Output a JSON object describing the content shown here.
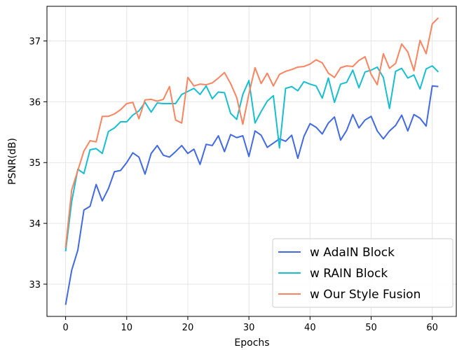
{
  "chart_data": {
    "type": "line",
    "xlabel": "Epochs",
    "ylabel": "PSNR(dB)",
    "xlim": [
      -3.05,
      64.05
    ],
    "ylim": [
      32.47,
      37.57
    ],
    "xticks": [
      "0",
      "10",
      "20",
      "30",
      "40",
      "50",
      "60"
    ],
    "yticks": [
      "33",
      "34",
      "35",
      "36",
      "37"
    ],
    "grid": true,
    "legend_position": "lower-right",
    "x": [
      0,
      1,
      2,
      3,
      4,
      5,
      6,
      7,
      8,
      9,
      10,
      11,
      12,
      13,
      14,
      15,
      16,
      17,
      18,
      19,
      20,
      21,
      22,
      23,
      24,
      25,
      26,
      27,
      28,
      29,
      30,
      31,
      32,
      33,
      34,
      35,
      36,
      37,
      38,
      39,
      40,
      41,
      42,
      43,
      44,
      45,
      46,
      47,
      48,
      49,
      50,
      51,
      52,
      53,
      54,
      55,
      56,
      57,
      58,
      59,
      60,
      61
    ],
    "series": [
      {
        "name": "w AdaIN Block",
        "color": "#4169e1",
        "values": [
          32.66,
          33.23,
          33.56,
          34.22,
          34.28,
          34.64,
          34.37,
          34.57,
          34.85,
          34.87,
          35.0,
          35.16,
          35.09,
          34.81,
          35.15,
          35.28,
          35.12,
          35.09,
          35.18,
          35.28,
          35.15,
          35.22,
          34.97,
          35.3,
          35.28,
          35.44,
          35.18,
          35.46,
          35.41,
          35.44,
          35.1,
          35.52,
          35.45,
          35.25,
          35.32,
          35.39,
          35.35,
          35.45,
          35.07,
          35.43,
          35.64,
          35.58,
          35.47,
          35.65,
          35.75,
          35.37,
          35.53,
          35.79,
          35.57,
          35.7,
          35.76,
          35.52,
          35.39,
          35.52,
          35.61,
          35.78,
          35.52,
          35.79,
          35.73,
          35.6,
          36.26,
          36.25
        ]
      },
      {
        "name": "w RAIN Block",
        "color": "#17becf",
        "values": [
          33.54,
          34.36,
          34.89,
          34.82,
          35.21,
          35.23,
          35.15,
          35.51,
          35.57,
          35.67,
          35.67,
          35.78,
          35.85,
          35.99,
          35.83,
          35.98,
          35.97,
          35.97,
          35.97,
          36.12,
          36.17,
          36.22,
          36.12,
          36.26,
          36.05,
          36.16,
          36.15,
          35.81,
          35.71,
          36.12,
          36.35,
          35.65,
          35.84,
          36.01,
          36.1,
          35.24,
          36.22,
          36.25,
          36.18,
          36.33,
          36.29,
          36.26,
          36.06,
          36.39,
          35.99,
          36.29,
          36.32,
          36.52,
          36.23,
          36.49,
          36.52,
          36.57,
          36.4,
          35.89,
          36.5,
          36.55,
          36.39,
          36.44,
          36.21,
          36.54,
          36.59,
          36.49
        ]
      },
      {
        "name": "w Our Style Fusion",
        "color": "#fa8460",
        "values": [
          33.6,
          34.55,
          34.87,
          35.19,
          35.36,
          35.34,
          35.76,
          35.76,
          35.8,
          35.87,
          35.97,
          35.99,
          35.72,
          36.03,
          36.04,
          36.01,
          36.04,
          36.25,
          35.7,
          35.65,
          36.4,
          36.26,
          36.29,
          36.28,
          36.31,
          36.39,
          36.48,
          36.3,
          36.07,
          35.63,
          36.13,
          36.56,
          36.3,
          36.47,
          36.26,
          36.45,
          36.5,
          36.53,
          36.57,
          36.58,
          36.62,
          36.69,
          36.64,
          36.47,
          36.4,
          36.56,
          36.59,
          36.58,
          36.68,
          36.74,
          36.45,
          36.28,
          36.79,
          36.55,
          36.63,
          36.95,
          36.82,
          36.51,
          37.01,
          36.79,
          37.28,
          37.38
        ]
      }
    ]
  }
}
